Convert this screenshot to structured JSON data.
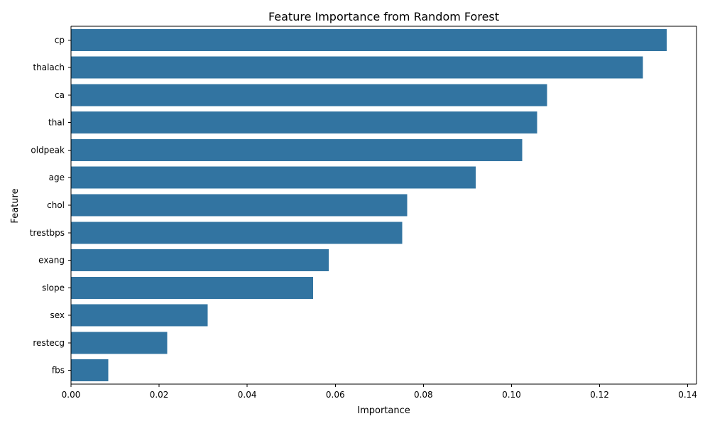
{
  "chart_data": {
    "type": "bar",
    "orientation": "horizontal",
    "title": "Feature Importance from Random Forest",
    "xlabel": "Importance",
    "ylabel": "Feature",
    "categories": [
      "cp",
      "thalach",
      "ca",
      "thal",
      "oldpeak",
      "age",
      "chol",
      "trestbps",
      "exang",
      "slope",
      "sex",
      "restecg",
      "fbs"
    ],
    "values": [
      0.1352,
      0.1298,
      0.1081,
      0.1058,
      0.1024,
      0.0919,
      0.0763,
      0.0752,
      0.0585,
      0.055,
      0.031,
      0.0218,
      0.0085
    ],
    "xlim": [
      0,
      0.142
    ],
    "xticks": [
      0.0,
      0.02,
      0.04,
      0.06,
      0.08,
      0.1,
      0.12,
      0.14
    ],
    "xtick_labels": [
      "0.00",
      "0.02",
      "0.04",
      "0.06",
      "0.08",
      "0.10",
      "0.12",
      "0.14"
    ],
    "bar_color": "#3274a1",
    "grid": false,
    "legend": "none"
  }
}
